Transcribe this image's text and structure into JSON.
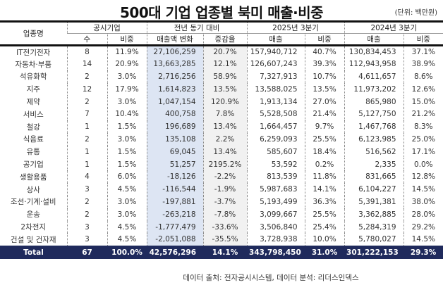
{
  "title": "500대 기업 업종별 북미 매출·비중",
  "unit": "(단위: 백만원)",
  "headers": {
    "industry": "업종명",
    "companies": "공시기업",
    "yoy": "전년 동기 대비",
    "q2025": "2025년 3분기",
    "q2024": "2024년 3분기",
    "count": "수",
    "share": "비중",
    "sales_change": "매출액 변화",
    "growth": "증감율",
    "sales": "매출",
    "share2": "비중",
    "sales2": "매출",
    "share3": "비중"
  },
  "rows": [
    [
      "IT전기전자",
      "8",
      "11.9%",
      "27,106,259",
      "20.7%",
      "157,940,712",
      "40.7%",
      "130,834,453",
      "37.1%"
    ],
    [
      "자동차·부품",
      "14",
      "20.9%",
      "13,663,285",
      "12.1%",
      "126,607,243",
      "39.3%",
      "112,943,958",
      "38.9%"
    ],
    [
      "석유화학",
      "2",
      "3.0%",
      "2,716,256",
      "58.9%",
      "7,327,913",
      "10.7%",
      "4,611,657",
      "8.6%"
    ],
    [
      "지주",
      "12",
      "17.9%",
      "1,614,823",
      "13.5%",
      "13,588,025",
      "13.5%",
      "11,973,202",
      "12.6%"
    ],
    [
      "제약",
      "2",
      "3.0%",
      "1,047,154",
      "120.9%",
      "1,913,134",
      "27.0%",
      "865,980",
      "15.0%"
    ],
    [
      "서비스",
      "7",
      "10.4%",
      "400,758",
      "7.8%",
      "5,528,508",
      "21.4%",
      "5,127,750",
      "21.2%"
    ],
    [
      "철강",
      "1",
      "1.5%",
      "196,689",
      "13.4%",
      "1,664,457",
      "9.7%",
      "1,467,768",
      "8.3%"
    ],
    [
      "식음료",
      "2",
      "3.0%",
      "135,108",
      "2.2%",
      "6,259,093",
      "25.5%",
      "6,123,985",
      "25.0%"
    ],
    [
      "유통",
      "1",
      "1.5%",
      "69,045",
      "13.4%",
      "585,607",
      "18.4%",
      "516,562",
      "17.1%"
    ],
    [
      "공기업",
      "1",
      "1.5%",
      "51,257",
      "2195.2%",
      "53,592",
      "0.2%",
      "2,335",
      "0.0%"
    ],
    [
      "생활용품",
      "4",
      "6.0%",
      "-18,126",
      "-2.2%",
      "813,539",
      "11.8%",
      "831,665",
      "12.8%"
    ],
    [
      "상사",
      "3",
      "4.5%",
      "-116,544",
      "-1.9%",
      "5,987,683",
      "14.1%",
      "6,104,227",
      "14.5%"
    ],
    [
      "조선·기계·설비",
      "2",
      "3.0%",
      "-197,881",
      "-3.7%",
      "5,193,499",
      "36.3%",
      "5,391,381",
      "38.0%"
    ],
    [
      "운송",
      "2",
      "3.0%",
      "-263,218",
      "-7.8%",
      "3,099,667",
      "25.5%",
      "3,362,885",
      "28.0%"
    ],
    [
      "2차전지",
      "3",
      "4.5%",
      "-1,777,479",
      "-33.6%",
      "3,506,840",
      "25.4%",
      "5,284,319",
      "29.2%"
    ],
    [
      "건설 및 건자재",
      "3",
      "4.5%",
      "-2,051,088",
      "-35.5%",
      "3,728,938",
      "10.0%",
      "5,780,027",
      "14.5%"
    ]
  ],
  "total": [
    "Total",
    "67",
    "100.0%",
    "42,576,296",
    "14.1%",
    "343,798,450",
    "31.0%",
    "301,222,153",
    "29.3%"
  ],
  "footer": "데이터 출처: 전자공시시스템, 데이터 분석: 리더스인덱스",
  "colors": {
    "total_bg": "#1f2a5c",
    "highlight_col": "#dde5f3"
  }
}
